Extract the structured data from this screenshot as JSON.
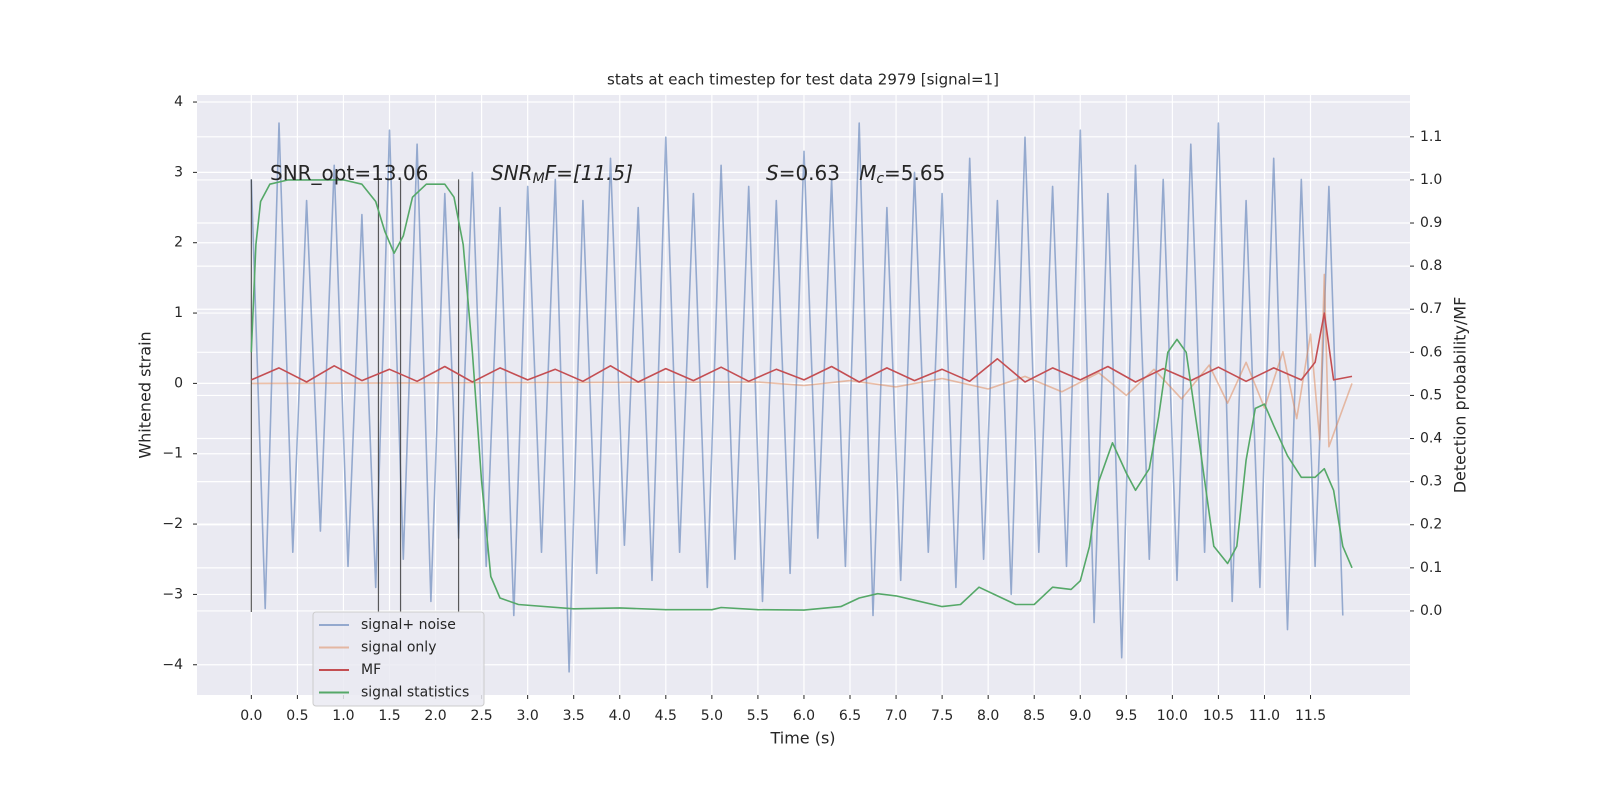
{
  "chart_data": {
    "type": "line",
    "title": "stats at each timestep for test data 2979 [signal=1]",
    "xlabel": "Time (s)",
    "ylabel": "Whitened strain",
    "y2label": "Detection probability/MF",
    "annotations": [
      [
        "SNR_opt=13.06"
      ],
      [
        "SNR",
        "M",
        "F=[11.5]"
      ],
      [
        "S",
        "=0.63   ",
        "M",
        "c",
        "=5.65"
      ]
    ],
    "xlim": [
      -0.59,
      12.58
    ],
    "ylim": [
      -4.43,
      4.1
    ],
    "y2lim": [
      -0.195,
      1.197
    ],
    "xticks": [
      {
        "value": 0,
        "label": "0.0"
      },
      0.5,
      {
        "value": 1,
        "label": "1.0"
      },
      1.5,
      {
        "value": 2,
        "label": "2.0"
      },
      2.5,
      {
        "value": 3,
        "label": "3.0"
      },
      3.5,
      {
        "value": 4,
        "label": "4.0"
      },
      4.5,
      {
        "value": 5,
        "label": "5.0"
      },
      5.5,
      {
        "value": 6,
        "label": "6.0"
      },
      6.5,
      {
        "value": 7,
        "label": "7.0"
      },
      7.5,
      {
        "value": 8,
        "label": "8.0"
      },
      8.5,
      {
        "value": 9,
        "label": "9.0"
      },
      9.5,
      {
        "value": 10,
        "label": "10.0"
      },
      10.5,
      {
        "value": 11,
        "label": "11.0"
      },
      11.5
    ],
    "yticks": [
      {
        "value": -4,
        "label": "−4"
      },
      {
        "value": -3,
        "label": "−3"
      },
      {
        "value": -2,
        "label": "−2"
      },
      {
        "value": -1,
        "label": "−1"
      },
      0,
      1,
      2,
      3,
      4
    ],
    "y2ticks": [
      {
        "value": 0,
        "label": "0.0"
      },
      0.1,
      0.2,
      0.3,
      0.4,
      0.5,
      0.6,
      0.7,
      0.8,
      0.9,
      {
        "value": 1,
        "label": "1.0"
      },
      1.1
    ],
    "grid": true,
    "legend": "lower left",
    "vlines": [
      0,
      1.38,
      1.62,
      2.25
    ],
    "vline_ylim": [
      -3.25,
      2.9
    ],
    "series": [
      {
        "name": "signal+ noise",
        "color": "#4c72b0",
        "alpha": 0.55,
        "x": [
          0,
          0.15,
          0.3,
          0.45,
          0.6,
          0.75,
          0.9,
          1.05,
          1.2,
          1.35,
          1.5,
          1.65,
          1.8,
          1.95,
          2.1,
          2.25,
          2.4,
          2.55,
          2.7,
          2.85,
          3.0,
          3.15,
          3.3,
          3.45,
          3.6,
          3.75,
          3.9,
          4.05,
          4.2,
          4.35,
          4.5,
          4.65,
          4.8,
          4.95,
          5.1,
          5.25,
          5.4,
          5.55,
          5.7,
          5.85,
          6.0,
          6.15,
          6.3,
          6.45,
          6.6,
          6.75,
          6.9,
          7.05,
          7.2,
          7.35,
          7.5,
          7.65,
          7.8,
          7.95,
          8.1,
          8.25,
          8.4,
          8.55,
          8.7,
          8.85,
          9.0,
          9.15,
          9.3,
          9.45,
          9.6,
          9.75,
          9.9,
          10.05,
          10.2,
          10.35,
          10.5,
          10.65,
          10.8,
          10.95,
          11.1,
          11.25,
          11.4,
          11.55,
          11.7,
          11.85
        ],
        "values": [
          2.9,
          -3.2,
          3.7,
          -2.4,
          2.6,
          -2.1,
          3.1,
          -2.6,
          2.4,
          -2.9,
          3.6,
          -2.5,
          3.4,
          -3.1,
          2.7,
          -2.2,
          3.0,
          -2.6,
          2.5,
          -3.3,
          2.8,
          -2.4,
          2.9,
          -4.1,
          2.6,
          -2.7,
          3.2,
          -2.3,
          2.5,
          -2.8,
          3.5,
          -2.4,
          2.7,
          -2.9,
          3.1,
          -2.5,
          2.8,
          -3.1,
          2.6,
          -2.7,
          3.3,
          -2.2,
          2.9,
          -2.6,
          3.7,
          -3.3,
          2.5,
          -2.8,
          3.0,
          -2.4,
          2.7,
          -2.9,
          3.2,
          -2.5,
          2.6,
          -3.0,
          3.5,
          -2.4,
          2.8,
          -2.6,
          3.6,
          -3.4,
          2.7,
          -3.9,
          3.1,
          -2.5,
          2.9,
          -2.8,
          3.4,
          -2.4,
          3.7,
          -3.1,
          2.6,
          -2.9,
          3.2,
          -3.5,
          2.9,
          -2.6,
          2.8,
          -3.3
        ]
      },
      {
        "name": "signal only",
        "color": "#dd8452",
        "alpha": 0.5,
        "x": [
          0,
          5.5,
          6.0,
          6.5,
          7.0,
          7.5,
          8.0,
          8.4,
          8.8,
          9.2,
          9.5,
          9.8,
          10.1,
          10.4,
          10.6,
          10.8,
          11.0,
          11.2,
          11.35,
          11.5,
          11.6,
          11.65,
          11.7,
          11.95
        ],
        "values": [
          0,
          0.02,
          -0.03,
          0.04,
          -0.05,
          0.07,
          -0.08,
          0.1,
          -0.12,
          0.15,
          -0.17,
          0.2,
          -0.22,
          0.26,
          -0.28,
          0.3,
          -0.35,
          0.45,
          -0.5,
          0.7,
          -0.8,
          1.55,
          -0.9,
          0
        ]
      },
      {
        "name": "MF",
        "color": "#c44e52",
        "alpha": 1,
        "x": [
          0,
          0.3,
          0.6,
          0.9,
          1.2,
          1.5,
          1.8,
          2.1,
          2.4,
          2.7,
          3.0,
          3.3,
          3.6,
          3.9,
          4.2,
          4.5,
          4.8,
          5.1,
          5.4,
          5.7,
          6.0,
          6.3,
          6.6,
          6.9,
          7.2,
          7.5,
          7.8,
          8.1,
          8.4,
          8.7,
          9.0,
          9.3,
          9.6,
          9.9,
          10.2,
          10.5,
          10.8,
          11.1,
          11.4,
          11.55,
          11.65,
          11.75,
          11.95
        ],
        "values": [
          0.05,
          0.22,
          0.02,
          0.25,
          0.04,
          0.2,
          0.03,
          0.24,
          0.02,
          0.22,
          0.05,
          0.2,
          0.03,
          0.25,
          0.02,
          0.21,
          0.04,
          0.23,
          0.03,
          0.2,
          0.05,
          0.24,
          0.02,
          0.22,
          0.04,
          0.2,
          0.03,
          0.35,
          0.02,
          0.22,
          0.05,
          0.24,
          0.02,
          0.21,
          0.04,
          0.23,
          0.03,
          0.22,
          0.05,
          0.3,
          1.0,
          0.05,
          0.1
        ]
      },
      {
        "name": "signal statistics",
        "color": "#55a868",
        "alpha": 1,
        "axis": "y2",
        "x": [
          0,
          0.05,
          0.1,
          0.2,
          0.4,
          1.0,
          1.2,
          1.35,
          1.45,
          1.55,
          1.65,
          1.75,
          1.9,
          2.1,
          2.2,
          2.3,
          2.4,
          2.5,
          2.6,
          2.7,
          2.9,
          3.5,
          4.0,
          4.5,
          5.0,
          5.1,
          5.5,
          6.0,
          6.4,
          6.6,
          6.8,
          7.0,
          7.2,
          7.5,
          7.7,
          7.9,
          8.1,
          8.3,
          8.5,
          8.7,
          8.9,
          9.0,
          9.1,
          9.2,
          9.35,
          9.5,
          9.6,
          9.75,
          9.85,
          9.95,
          10.05,
          10.15,
          10.3,
          10.45,
          10.6,
          10.7,
          10.8,
          10.9,
          11.0,
          11.1,
          11.25,
          11.4,
          11.55,
          11.65,
          11.75,
          11.85,
          11.95
        ],
        "values": [
          0.6,
          0.85,
          0.95,
          0.99,
          1.0,
          1.0,
          0.99,
          0.95,
          0.88,
          0.83,
          0.87,
          0.96,
          0.99,
          0.99,
          0.96,
          0.85,
          0.6,
          0.3,
          0.08,
          0.03,
          0.015,
          0.005,
          0.007,
          0.003,
          0.003,
          0.008,
          0.003,
          0.002,
          0.01,
          0.03,
          0.04,
          0.035,
          0.025,
          0.01,
          0.015,
          0.055,
          0.035,
          0.015,
          0.015,
          0.055,
          0.05,
          0.07,
          0.15,
          0.3,
          0.39,
          0.32,
          0.28,
          0.33,
          0.45,
          0.6,
          0.63,
          0.6,
          0.38,
          0.15,
          0.11,
          0.15,
          0.35,
          0.47,
          0.48,
          0.43,
          0.36,
          0.31,
          0.31,
          0.33,
          0.28,
          0.15,
          0.1
        ]
      }
    ]
  }
}
